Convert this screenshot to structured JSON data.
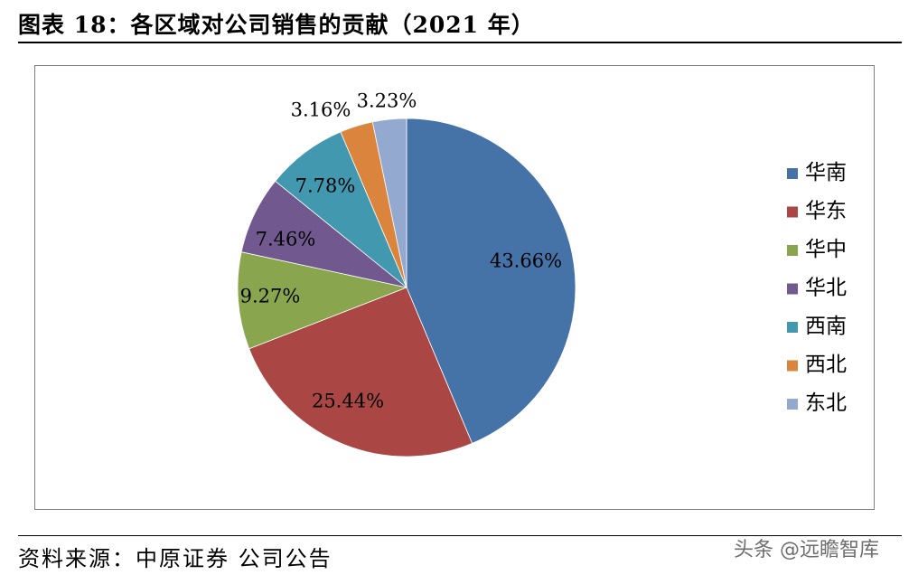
{
  "title": "图表 18：各区域对公司销售的贡献（2021 年）",
  "source": "资料来源：中原证券   公司公告",
  "watermark": "头条 @远瞻智库",
  "chart_data": {
    "type": "pie",
    "categories": [
      "华南",
      "华东",
      "华中",
      "华北",
      "西南",
      "西北",
      "东北"
    ],
    "values": [
      43.66,
      25.44,
      9.27,
      7.46,
      7.78,
      3.16,
      3.23
    ],
    "value_labels": [
      "43.66%",
      "25.44%",
      "9.27%",
      "7.46%",
      "7.78%",
      "3.16%",
      "3.23%"
    ],
    "colors": [
      "#4572a7",
      "#aa4643",
      "#89a54e",
      "#71588f",
      "#4198af",
      "#db843d",
      "#93a9cf"
    ],
    "legend_position": "right",
    "start": "12 o'clock",
    "direction": "clockwise"
  }
}
